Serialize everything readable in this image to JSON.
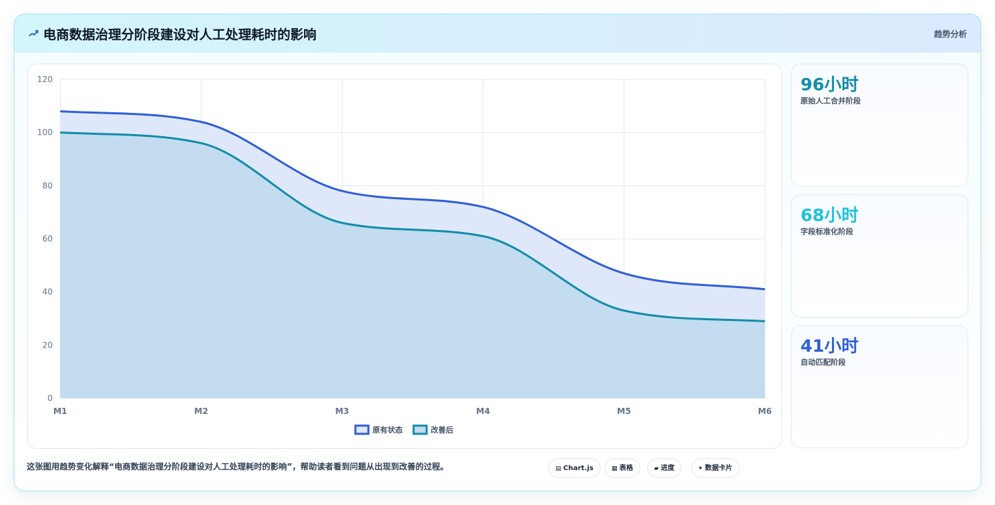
{
  "header": {
    "title": "电商数据治理分阶段建设对人工处理耗时的影响",
    "tag": "趋势分析",
    "icon": "chart-trend-icon"
  },
  "chart_data": {
    "type": "area",
    "title": "",
    "xlabel": "",
    "ylabel": "",
    "categories": [
      "M1",
      "M2",
      "M3",
      "M4",
      "M5",
      "M6"
    ],
    "series": [
      {
        "name": "原有状态",
        "values": [
          108,
          104,
          78,
          72,
          47,
          41
        ],
        "color": "#2f5fd6",
        "fill": "#dfe8fb"
      },
      {
        "name": "改善后",
        "values": [
          100,
          96,
          66,
          61,
          33,
          29
        ],
        "color": "#138da8",
        "fill": "#c3dcf0"
      }
    ],
    "ylim": [
      0,
      120
    ],
    "yticks": [
      0,
      20,
      40,
      60,
      80,
      100,
      120
    ],
    "grid": true,
    "legend": "bottom-center"
  },
  "stats": [
    {
      "value": "96小时",
      "label": "原始人工合并阶段",
      "color": "#138da8"
    },
    {
      "value": "68小时",
      "label": "字段标准化阶段",
      "color": "#1fc3dc"
    },
    {
      "value": "41小时",
      "label": "自动匹配阶段",
      "color": "#2f5fd6"
    }
  ],
  "footer": {
    "description": "这张图用趋势变化解释“电商数据治理分阶段建设对人工处理耗时的影响”，帮助读者看到问题从出现到改善的过程。",
    "chips": [
      {
        "icon": "▤",
        "label": "Chart.js"
      },
      {
        "icon": "▦",
        "label": "表格"
      },
      {
        "icon": "▰",
        "label": "进度"
      },
      {
        "icon": "✦",
        "label": "数据卡片"
      }
    ]
  }
}
